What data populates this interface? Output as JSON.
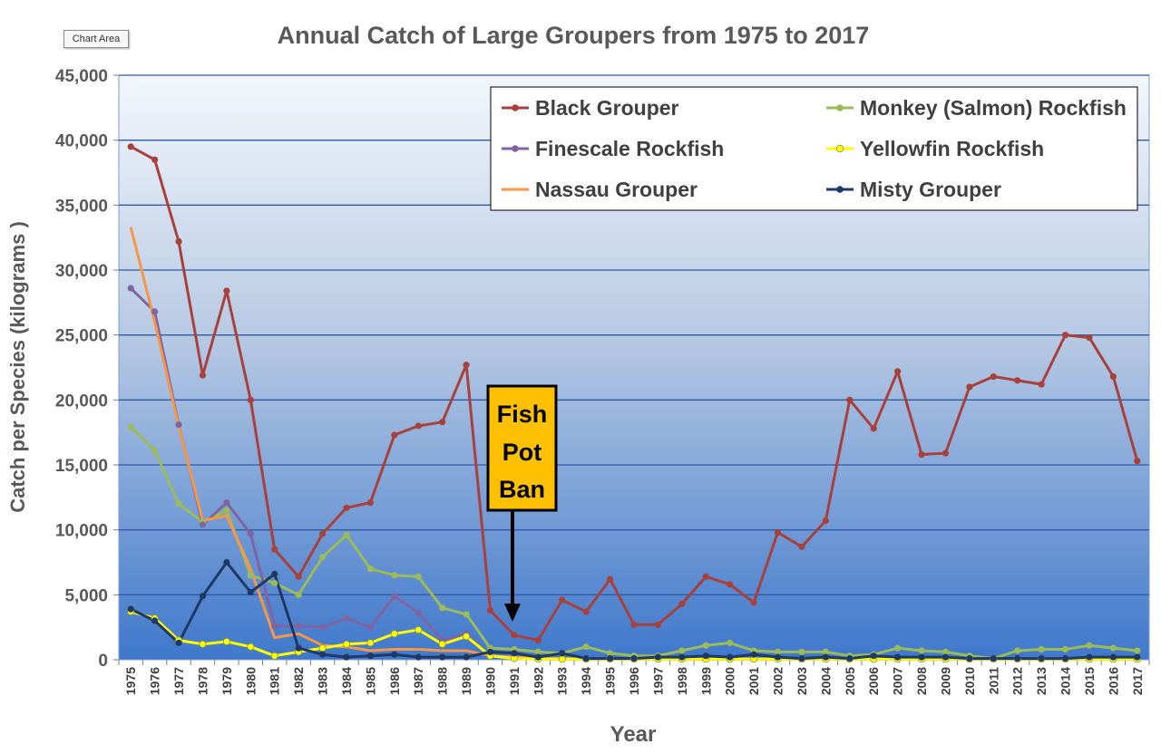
{
  "chart_area_label": "Chart Area",
  "chart_data": {
    "type": "line",
    "title": "Annual Catch of Large Groupers from 1975 to 2017",
    "xlabel": "Year",
    "ylabel": "Catch per Species (kilograms )",
    "ylim": [
      0,
      45000
    ],
    "yticks": [
      0,
      5000,
      10000,
      15000,
      20000,
      25000,
      30000,
      35000,
      40000,
      45000
    ],
    "ytick_labels": [
      "0",
      "5,000",
      "10,000",
      "15,000",
      "20,000",
      "25,000",
      "30,000",
      "35,000",
      "40,000",
      "45,000"
    ],
    "x": [
      1975,
      1976,
      1977,
      1978,
      1979,
      1980,
      1981,
      1982,
      1983,
      1984,
      1985,
      1986,
      1987,
      1988,
      1989,
      1990,
      1991,
      1992,
      1993,
      1994,
      1995,
      1996,
      1997,
      1998,
      1999,
      2000,
      2001,
      2002,
      2003,
      2004,
      2005,
      2006,
      2007,
      2008,
      2009,
      2010,
      2011,
      2012,
      2013,
      2014,
      2015,
      2016,
      2017
    ],
    "grid": true,
    "legend_position": "top-right",
    "series": [
      {
        "name": "Black Grouper",
        "color": "#a8403c",
        "values": [
          39500,
          38500,
          32200,
          21900,
          28400,
          20000,
          8500,
          6400,
          9700,
          11700,
          12100,
          17300,
          18000,
          18300,
          22700,
          3800,
          1900,
          1500,
          4600,
          3700,
          6200,
          2700,
          2700,
          4300,
          6400,
          5800,
          4400,
          9800,
          8700,
          10700,
          20000,
          17800,
          22200,
          15800,
          15900,
          21000,
          21800,
          21500,
          21200,
          25000,
          24800,
          21800,
          15300
        ]
      },
      {
        "name": "Monkey (Salmon) Rockfish",
        "color": "#9bbb59",
        "values": [
          17900,
          16100,
          12000,
          10600,
          11500,
          6500,
          5900,
          5000,
          7900,
          9600,
          7000,
          6500,
          6400,
          4000,
          3500,
          900,
          800,
          600,
          500,
          1000,
          500,
          300,
          300,
          700,
          1100,
          1300,
          700,
          600,
          600,
          600,
          300,
          400,
          900,
          700,
          600,
          300,
          100,
          700,
          800,
          800,
          1100,
          900,
          700
        ]
      },
      {
        "name": "Finescale Rockfish",
        "color": "#8064a2",
        "values": [
          28600,
          26800,
          18100,
          10400,
          12100,
          9700,
          2600,
          2600,
          2500,
          3200,
          2500,
          4900,
          3600,
          1500,
          2000,
          300,
          100,
          50,
          50,
          50,
          50,
          50,
          50,
          50,
          50,
          50,
          50,
          50,
          50,
          50,
          50,
          50,
          50,
          50,
          50,
          50,
          50,
          50,
          50,
          50,
          50,
          50,
          50
        ]
      },
      {
        "name": "Yellowfin Rockfish",
        "color": "#ffff00",
        "values": [
          3700,
          3200,
          1500,
          1200,
          1400,
          1000,
          300,
          600,
          900,
          1200,
          1300,
          2000,
          2300,
          1200,
          1800,
          300,
          100,
          50,
          50,
          50,
          50,
          50,
          50,
          50,
          50,
          50,
          50,
          50,
          50,
          50,
          50,
          50,
          50,
          50,
          50,
          50,
          50,
          50,
          50,
          50,
          50,
          50,
          50
        ]
      },
      {
        "name": "Nassau Grouper",
        "color": "#f79646",
        "values": [
          33300,
          26000,
          18000,
          10700,
          11100,
          7000,
          1700,
          2000,
          1100,
          1000,
          700,
          800,
          800,
          700,
          700,
          300,
          200,
          100,
          100,
          50,
          50,
          50,
          50,
          50,
          50,
          50,
          50,
          50,
          50,
          50,
          50,
          50,
          50,
          50,
          50,
          50,
          50,
          50,
          50,
          50,
          50,
          50,
          50
        ]
      },
      {
        "name": "Misty Grouper",
        "color": "#1f3864",
        "values": [
          3900,
          3000,
          1300,
          4900,
          7500,
          5200,
          6600,
          900,
          400,
          200,
          300,
          400,
          200,
          200,
          200,
          600,
          500,
          200,
          500,
          100,
          100,
          100,
          200,
          200,
          300,
          200,
          400,
          200,
          100,
          200,
          100,
          300,
          200,
          200,
          200,
          100,
          100,
          100,
          100,
          100,
          200,
          200,
          200
        ]
      }
    ],
    "annotations": [
      {
        "text": [
          "Fish",
          "Pot",
          "Ban"
        ],
        "points_to_year": 1991
      }
    ]
  }
}
